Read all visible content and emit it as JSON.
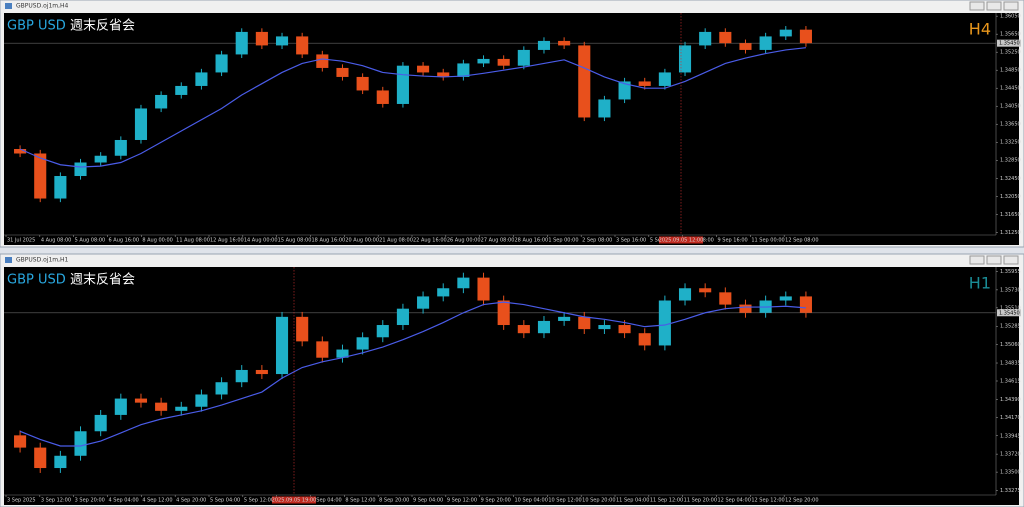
{
  "chart_data": [
    {
      "type": "candlestick",
      "window_title": "GBPUSD.oj1m,H4",
      "title": "GBP USD",
      "subtitle": "週末反省会",
      "timeframe": "H4",
      "up_color": "#1fb0c8",
      "down_color": "#e8501c",
      "ma_color": "#4a5ce8",
      "title_color": "#29a8e0",
      "timeframe_color": "#e8961c",
      "ylim": [
        1.3119,
        1.3612
      ],
      "yticks": [
        {
          "value": 1.3605,
          "label": "1.36050"
        },
        {
          "value": 1.3565,
          "label": "1.35650"
        },
        {
          "value": 1.3525,
          "label": "1.35250"
        },
        {
          "value": 1.3485,
          "label": "1.34850"
        },
        {
          "value": 1.3445,
          "label": "1.34450"
        },
        {
          "value": 1.3405,
          "label": "1.34050"
        },
        {
          "value": 1.3365,
          "label": "1.33650"
        },
        {
          "value": 1.3325,
          "label": "1.33250"
        },
        {
          "value": 1.3285,
          "label": "1.32850"
        },
        {
          "value": 1.3245,
          "label": "1.32450"
        },
        {
          "value": 1.3205,
          "label": "1.32050"
        },
        {
          "value": 1.3165,
          "label": "1.31650"
        },
        {
          "value": 1.3125,
          "label": "1.31250"
        }
      ],
      "current_price": {
        "value": 1.3545,
        "label": "1.35450"
      },
      "xlabels": [
        "31 Jul 2025",
        "4 Aug 08:00",
        "5 Aug 08:00",
        "6 Aug 16:00",
        "8 Aug 00:00",
        "11 Aug 08:00",
        "12 Aug 16:00",
        "14 Aug 00:00",
        "15 Aug 08:00",
        "18 Aug 16:00",
        "20 Aug 00:00",
        "21 Aug 08:00",
        "22 Aug 16:00",
        "26 Aug 00:00",
        "27 Aug 08:00",
        "28 Aug 16:00",
        "1 Sep 00:00",
        "2 Sep 08:00",
        "3 Sep 16:00",
        "5 Sep 00:00",
        "8 Sep 08:00",
        "9 Sep 16:00",
        "11 Sep 00:00",
        "12 Sep 08:00"
      ],
      "cursor_label": "2025.09.05 12:00",
      "candles": [
        [
          1.331,
          1.3318,
          1.3292,
          1.33
        ],
        [
          1.33,
          1.3308,
          1.3192,
          1.32
        ],
        [
          1.32,
          1.3258,
          1.3192,
          1.325
        ],
        [
          1.325,
          1.3288,
          1.3242,
          1.328
        ],
        [
          1.328,
          1.3303,
          1.3272,
          1.3295
        ],
        [
          1.3295,
          1.3338,
          1.3287,
          1.333
        ],
        [
          1.333,
          1.3408,
          1.3322,
          1.34
        ],
        [
          1.34,
          1.3438,
          1.3392,
          1.343
        ],
        [
          1.343,
          1.3458,
          1.3422,
          1.345
        ],
        [
          1.345,
          1.3488,
          1.3442,
          1.348
        ],
        [
          1.348,
          1.3528,
          1.3472,
          1.352
        ],
        [
          1.352,
          1.3578,
          1.3512,
          1.357
        ],
        [
          1.357,
          1.3578,
          1.3532,
          1.354
        ],
        [
          1.354,
          1.3568,
          1.3532,
          1.356
        ],
        [
          1.356,
          1.3568,
          1.3512,
          1.352
        ],
        [
          1.352,
          1.3528,
          1.3482,
          1.349
        ],
        [
          1.349,
          1.3498,
          1.3462,
          1.347
        ],
        [
          1.347,
          1.3478,
          1.3432,
          1.344
        ],
        [
          1.344,
          1.3448,
          1.3402,
          1.341
        ],
        [
          1.341,
          1.3503,
          1.3402,
          1.3495
        ],
        [
          1.3495,
          1.3503,
          1.3472,
          1.348
        ],
        [
          1.348,
          1.3488,
          1.3462,
          1.347
        ],
        [
          1.347,
          1.3508,
          1.3462,
          1.35
        ],
        [
          1.35,
          1.3518,
          1.3492,
          1.351
        ],
        [
          1.351,
          1.3518,
          1.3487,
          1.3495
        ],
        [
          1.3495,
          1.3538,
          1.3487,
          1.353
        ],
        [
          1.353,
          1.3558,
          1.3522,
          1.355
        ],
        [
          1.355,
          1.3558,
          1.3532,
          1.354
        ],
        [
          1.354,
          1.3548,
          1.3372,
          1.338
        ],
        [
          1.338,
          1.3428,
          1.3372,
          1.342
        ],
        [
          1.342,
          1.3468,
          1.3412,
          1.346
        ],
        [
          1.346,
          1.3468,
          1.3442,
          1.345
        ],
        [
          1.345,
          1.3488,
          1.3442,
          1.348
        ],
        [
          1.348,
          1.3548,
          1.3472,
          1.354
        ],
        [
          1.354,
          1.3578,
          1.3532,
          1.357
        ],
        [
          1.357,
          1.3578,
          1.3537,
          1.3545
        ],
        [
          1.3545,
          1.3553,
          1.3522,
          1.353
        ],
        [
          1.353,
          1.3568,
          1.3522,
          1.356
        ],
        [
          1.356,
          1.3583,
          1.3552,
          1.3575
        ],
        [
          1.3575,
          1.3583,
          1.3537,
          1.3545
        ]
      ],
      "ma_values": [
        1.331,
        1.329,
        1.3275,
        1.327,
        1.3272,
        1.328,
        1.33,
        1.3325,
        1.335,
        1.3375,
        1.34,
        1.343,
        1.3455,
        1.348,
        1.35,
        1.351,
        1.3505,
        1.3495,
        1.348,
        1.3475,
        1.3472,
        1.347,
        1.3472,
        1.3478,
        1.3485,
        1.3492,
        1.35,
        1.3508,
        1.349,
        1.347,
        1.3455,
        1.3445,
        1.3445,
        1.346,
        1.348,
        1.35,
        1.3512,
        1.3522,
        1.353,
        1.3535
      ]
    },
    {
      "type": "candlestick",
      "window_title": "GBPUSD.oj1m,H1",
      "title": "GBP USD",
      "subtitle": "週末反省会",
      "timeframe": "H1",
      "up_color": "#1fb0c8",
      "down_color": "#e8501c",
      "ma_color": "#4a5ce8",
      "title_color": "#29a8e0",
      "timeframe_color": "#1a8c96",
      "ylim": [
        1.3322,
        1.3601
      ],
      "yticks": [
        {
          "value": 1.35955,
          "label": "1.35955"
        },
        {
          "value": 1.3573,
          "label": "1.35730"
        },
        {
          "value": 1.3551,
          "label": "1.35510"
        },
        {
          "value": 1.35285,
          "label": "1.35285"
        },
        {
          "value": 1.3506,
          "label": "1.35060"
        },
        {
          "value": 1.34835,
          "label": "1.34835"
        },
        {
          "value": 1.34615,
          "label": "1.34615"
        },
        {
          "value": 1.3439,
          "label": "1.34390"
        },
        {
          "value": 1.3417,
          "label": "1.34170"
        },
        {
          "value": 1.33945,
          "label": "1.33945"
        },
        {
          "value": 1.3372,
          "label": "1.33720"
        },
        {
          "value": 1.335,
          "label": "1.33500"
        },
        {
          "value": 1.33275,
          "label": "1.33275"
        }
      ],
      "current_price": {
        "value": 1.3545,
        "label": "1.35450"
      },
      "xlabels": [
        "3 Sep 2025",
        "3 Sep 12:00",
        "3 Sep 20:00",
        "4 Sep 04:00",
        "4 Sep 12:00",
        "4 Sep 20:00",
        "5 Sep 04:00",
        "5 Sep 12:00",
        "5 Sep 20:00",
        "8 Sep 04:00",
        "8 Sep 12:00",
        "8 Sep 20:00",
        "9 Sep 04:00",
        "9 Sep 12:00",
        "9 Sep 20:00",
        "10 Sep 04:00",
        "10 Sep 12:00",
        "10 Sep 20:00",
        "11 Sep 04:00",
        "11 Sep 12:00",
        "11 Sep 20:00",
        "12 Sep 04:00",
        "12 Sep 12:00",
        "12 Sep 20:00"
      ],
      "cursor_label": "2025.09.05 19:00",
      "candles": [
        [
          1.3395,
          1.3401,
          1.3374,
          1.338
        ],
        [
          1.338,
          1.3386,
          1.3349,
          1.3355
        ],
        [
          1.3355,
          1.3376,
          1.3349,
          1.337
        ],
        [
          1.337,
          1.3406,
          1.3364,
          1.34
        ],
        [
          1.34,
          1.3426,
          1.3394,
          1.342
        ],
        [
          1.342,
          1.3446,
          1.3414,
          1.344
        ],
        [
          1.344,
          1.3446,
          1.3429,
          1.3435
        ],
        [
          1.3435,
          1.3441,
          1.3419,
          1.3425
        ],
        [
          1.3425,
          1.3436,
          1.3419,
          1.343
        ],
        [
          1.343,
          1.3451,
          1.3424,
          1.3445
        ],
        [
          1.3445,
          1.3466,
          1.3439,
          1.346
        ],
        [
          1.346,
          1.3481,
          1.3454,
          1.3475
        ],
        [
          1.3475,
          1.3481,
          1.3464,
          1.347
        ],
        [
          1.347,
          1.3546,
          1.3464,
          1.354
        ],
        [
          1.354,
          1.3546,
          1.3504,
          1.351
        ],
        [
          1.351,
          1.3516,
          1.3484,
          1.349
        ],
        [
          1.349,
          1.3506,
          1.3484,
          1.35
        ],
        [
          1.35,
          1.3521,
          1.3494,
          1.3515
        ],
        [
          1.3515,
          1.3536,
          1.3509,
          1.353
        ],
        [
          1.353,
          1.3556,
          1.3524,
          1.355
        ],
        [
          1.355,
          1.3571,
          1.3544,
          1.3565
        ],
        [
          1.3565,
          1.3581,
          1.3559,
          1.3575
        ],
        [
          1.3575,
          1.3594,
          1.3569,
          1.3588
        ],
        [
          1.3588,
          1.3594,
          1.3554,
          1.356
        ],
        [
          1.356,
          1.3566,
          1.3524,
          1.353
        ],
        [
          1.353,
          1.3536,
          1.3514,
          1.352
        ],
        [
          1.352,
          1.3541,
          1.3514,
          1.3535
        ],
        [
          1.3535,
          1.3546,
          1.3529,
          1.354
        ],
        [
          1.354,
          1.3546,
          1.3519,
          1.3525
        ],
        [
          1.3525,
          1.3536,
          1.3519,
          1.353
        ],
        [
          1.353,
          1.3536,
          1.3514,
          1.352
        ],
        [
          1.352,
          1.3526,
          1.3499,
          1.3505
        ],
        [
          1.3505,
          1.3566,
          1.3499,
          1.356
        ],
        [
          1.356,
          1.3581,
          1.3554,
          1.3575
        ],
        [
          1.3575,
          1.3581,
          1.3564,
          1.357
        ],
        [
          1.357,
          1.3576,
          1.3549,
          1.3555
        ],
        [
          1.3555,
          1.3561,
          1.3539,
          1.3545
        ],
        [
          1.3545,
          1.3566,
          1.3539,
          1.356
        ],
        [
          1.356,
          1.3571,
          1.3554,
          1.3565
        ],
        [
          1.3565,
          1.3571,
          1.3539,
          1.3545
        ]
      ],
      "ma_values": [
        1.34,
        1.339,
        1.3382,
        1.3382,
        1.3388,
        1.3398,
        1.3408,
        1.3415,
        1.342,
        1.3425,
        1.3432,
        1.344,
        1.3448,
        1.3465,
        1.3478,
        1.3485,
        1.349,
        1.3496,
        1.3503,
        1.3512,
        1.3522,
        1.3533,
        1.3545,
        1.3555,
        1.3558,
        1.3555,
        1.355,
        1.3545,
        1.354,
        1.3537,
        1.3533,
        1.3528,
        1.353,
        1.3537,
        1.3545,
        1.355,
        1.3552,
        1.3552,
        1.3553,
        1.3551
      ]
    }
  ]
}
